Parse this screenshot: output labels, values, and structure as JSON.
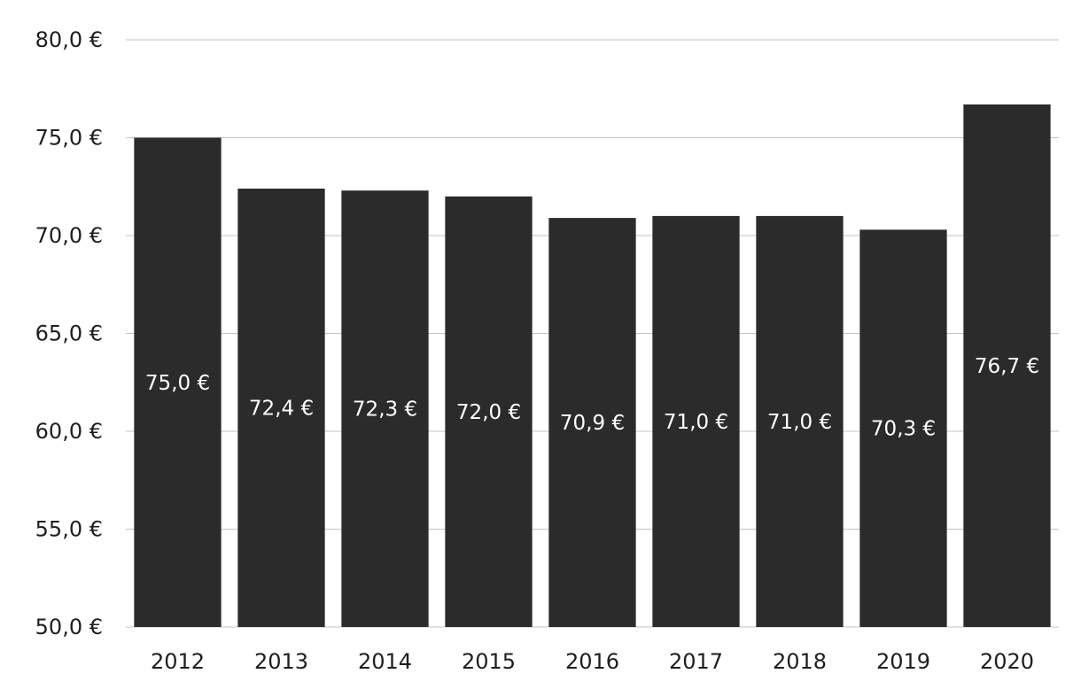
{
  "chart_data": {
    "type": "bar",
    "title": "",
    "xlabel": "",
    "ylabel": "",
    "categories": [
      "2012",
      "2013",
      "2014",
      "2015",
      "2016",
      "2017",
      "2018",
      "2019",
      "2020"
    ],
    "values": [
      75.0,
      72.4,
      72.3,
      72.0,
      70.9,
      71.0,
      71.0,
      70.3,
      76.7
    ],
    "value_labels": [
      "75,0 €",
      "72,4 €",
      "72,3 €",
      "72,0 €",
      "70,9 €",
      "71,0 €",
      "71,0 €",
      "70,3 €",
      "76,7 €"
    ],
    "ylim": [
      50,
      80
    ],
    "y_ticks": [
      50,
      55,
      60,
      65,
      70,
      75,
      80
    ],
    "y_tick_labels": [
      "50,0 €",
      "55,0 €",
      "60,0 €",
      "65,0 €",
      "70,0 €",
      "75,0 €",
      "80,0 €"
    ],
    "grid": true,
    "legend": "none",
    "colors": {
      "bar": "#2b2b2b",
      "bar_label": "#ffffff",
      "grid": "#c4c4c4",
      "text": "#1e1e1e"
    }
  }
}
